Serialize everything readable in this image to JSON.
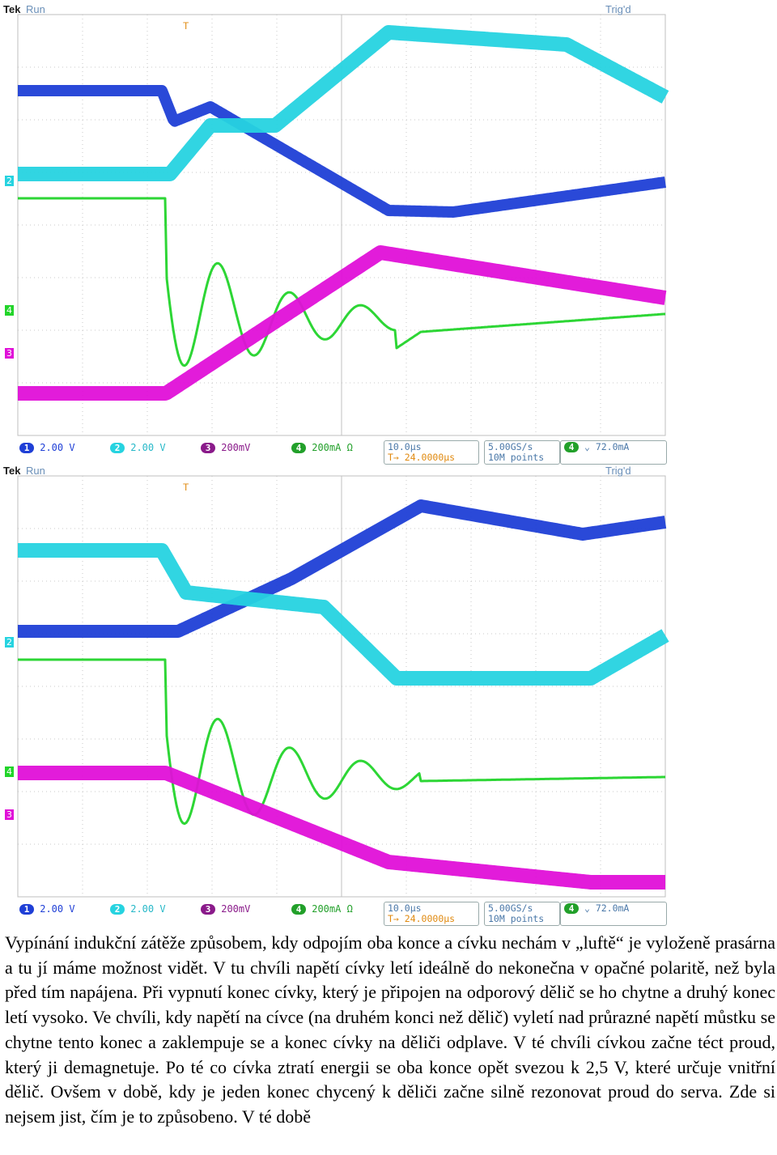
{
  "screens": [
    {
      "brand": "Tek",
      "status": "Run",
      "trigger_state": "Trig'd",
      "channel_scales": [
        {
          "num": "1",
          "value": "2.00 V",
          "color": "#1f3fd6"
        },
        {
          "num": "2",
          "value": "2.00 V",
          "color": "#26d3e0"
        },
        {
          "num": "3",
          "value": "200mV",
          "color": "#e010d8"
        },
        {
          "num": "4",
          "value": "200mA Ω",
          "color": "#22d42a"
        }
      ],
      "timebase": "10.0µs",
      "trigger_position": "24.0000µs",
      "sample_rate": "5.00GS/s",
      "record_length": "10M points",
      "trigger_channel": "4",
      "trigger_level": "72.0mA",
      "markers": [
        {
          "label": "2",
          "color": "#26d3e0"
        },
        {
          "label": "4",
          "color": "#22d42a"
        },
        {
          "label": "3",
          "color": "#e010d8"
        }
      ]
    },
    {
      "brand": "Tek",
      "status": "Run",
      "trigger_state": "Trig'd",
      "channel_scales": [
        {
          "num": "1",
          "value": "2.00 V",
          "color": "#1f3fd6"
        },
        {
          "num": "2",
          "value": "2.00 V",
          "color": "#26d3e0"
        },
        {
          "num": "3",
          "value": "200mV",
          "color": "#e010d8"
        },
        {
          "num": "4",
          "value": "200mA Ω",
          "color": "#22d42a"
        }
      ],
      "timebase": "10.0µs",
      "trigger_position": "24.0000µs",
      "sample_rate": "5.00GS/s",
      "record_length": "10M points",
      "trigger_channel": "4",
      "trigger_level": "72.0mA",
      "markers": [
        {
          "label": "2",
          "color": "#26d3e0"
        },
        {
          "label": "4",
          "color": "#22d42a"
        },
        {
          "label": "3",
          "color": "#e010d8"
        }
      ]
    }
  ],
  "caption": "Vypínání indukční zátěže způsobem, kdy odpojím oba konce a cívku nechám v „luftě“ je vyloženě prasárna a tu jí máme možnost vidět. V tu chvíli napětí cívky letí ideálně do nekonečna v opačné polaritě, než byla před tím napájena. Při vypnutí konec cívky, který je připojen na odporový dělič se ho chytne a druhý konec letí vysoko. Ve chvíli, kdy napětí na cívce (na druhém konci než dělič) vyletí nad průrazné napětí můstku se chytne tento konec a zaklempuje se a konec cívky na děliči odplave. V té chvíli cívkou začne téct proud, který ji demagnetuje. Po té co cívka ztratí energii se oba konce opět svezou k 2,5 V, které určuje vnitřní dělič. Ovšem v době, kdy je jeden konec chycený k děliči začne silně rezonovat proud do serva. Zde si nejsem jist, čím je to způsobeno. V té době"
}
